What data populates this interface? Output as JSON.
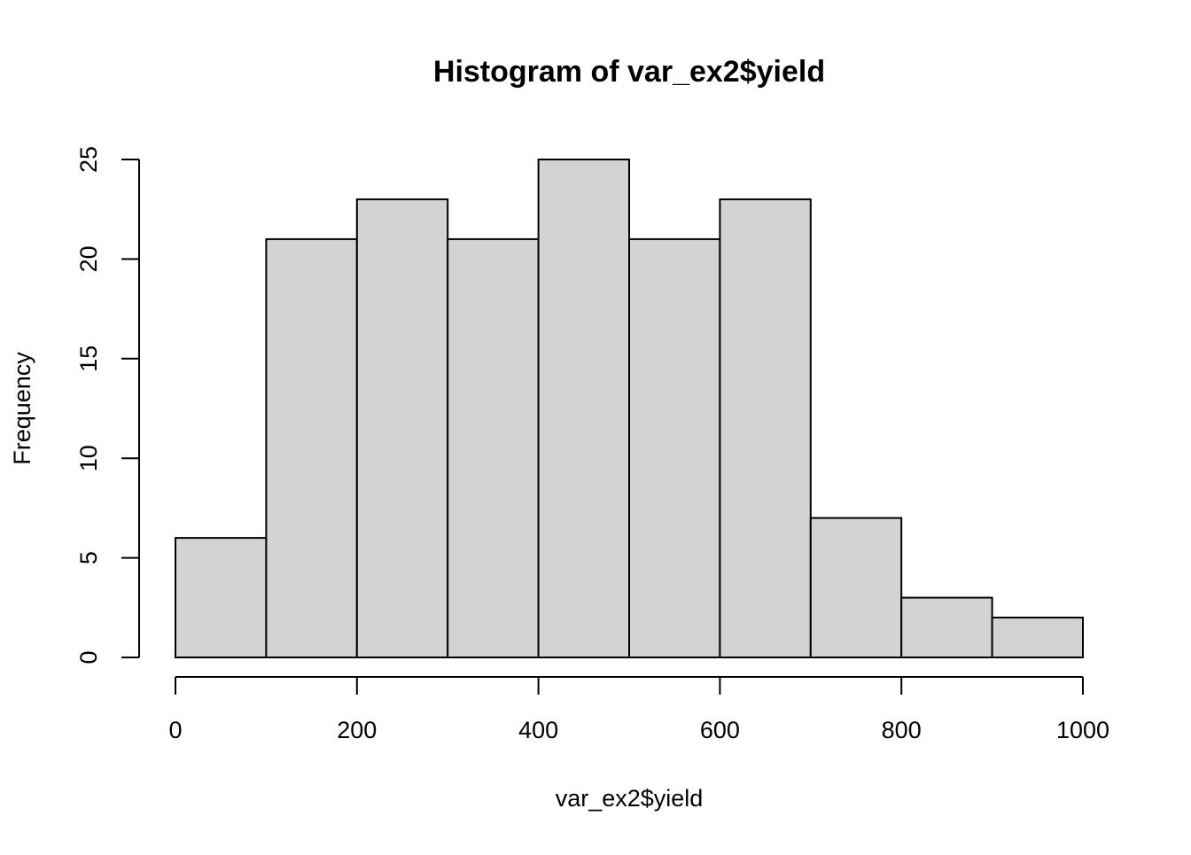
{
  "chart_data": {
    "type": "bar",
    "title": "Histogram of var_ex2$yield",
    "xlabel": "var_ex2$yield",
    "ylabel": "Frequency",
    "bins": [
      {
        "from": 0,
        "to": 100,
        "count": 6
      },
      {
        "from": 100,
        "to": 200,
        "count": 21
      },
      {
        "from": 200,
        "to": 300,
        "count": 23
      },
      {
        "from": 300,
        "to": 400,
        "count": 21
      },
      {
        "from": 400,
        "to": 500,
        "count": 25
      },
      {
        "from": 500,
        "to": 600,
        "count": 21
      },
      {
        "from": 600,
        "to": 700,
        "count": 23
      },
      {
        "from": 700,
        "to": 800,
        "count": 7
      },
      {
        "from": 800,
        "to": 900,
        "count": 3
      },
      {
        "from": 900,
        "to": 1000,
        "count": 2
      }
    ],
    "xticks": [
      0,
      200,
      400,
      600,
      800,
      1000
    ],
    "yticks": [
      0,
      5,
      10,
      15,
      20,
      25
    ],
    "xlim": [
      0,
      1000
    ],
    "ylim": [
      0,
      25
    ],
    "grid": false,
    "legend": "none",
    "colors": {
      "bar_fill": "#d3d3d3",
      "bar_stroke": "#000000",
      "axis": "#000000",
      "background": "#ffffff"
    }
  }
}
